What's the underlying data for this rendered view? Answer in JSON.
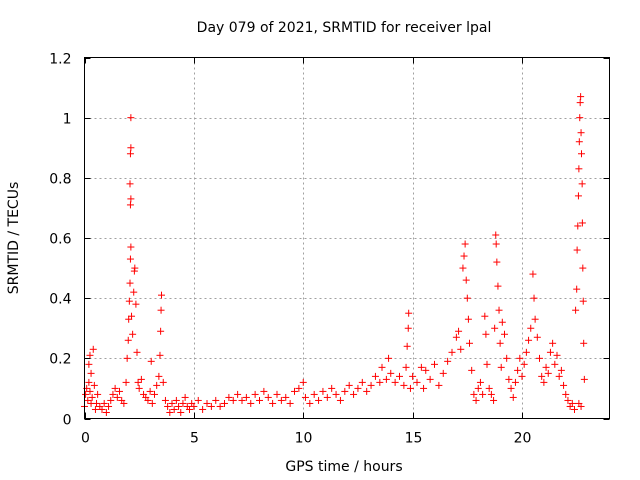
{
  "chart_data": {
    "type": "scatter",
    "title": "Day 079 of 2021, SRMTID for receiver lpal",
    "xlabel": "GPS time / hours",
    "ylabel": "SRMTID / TECUs",
    "xlim": [
      0,
      24
    ],
    "ylim": [
      0,
      1.2
    ],
    "xticks": [
      0,
      5,
      10,
      15,
      20
    ],
    "xtick_labels": [
      "0",
      "5",
      "10",
      "15",
      "20"
    ],
    "yticks": [
      0,
      0.2,
      0.4,
      0.6,
      0.8,
      1.0,
      1.2
    ],
    "ytick_labels": [
      "0",
      "0.2",
      "0.4",
      "0.6",
      "0.8",
      "1",
      "1.2"
    ],
    "grid": true,
    "marker": "+",
    "color": "#ff0000",
    "series": [
      {
        "name": "SRMTID",
        "points": [
          [
            0.0,
            0.04
          ],
          [
            0.05,
            0.08
          ],
          [
            0.1,
            0.1
          ],
          [
            0.15,
            0.06
          ],
          [
            0.2,
            0.12
          ],
          [
            0.25,
            0.09
          ],
          [
            0.3,
            0.05
          ],
          [
            0.35,
            0.07
          ],
          [
            0.2,
            0.18
          ],
          [
            0.25,
            0.21
          ],
          [
            0.3,
            0.15
          ],
          [
            0.4,
            0.23
          ],
          [
            0.45,
            0.11
          ],
          [
            0.5,
            0.03
          ],
          [
            0.55,
            0.05
          ],
          [
            0.6,
            0.08
          ],
          [
            0.7,
            0.04
          ],
          [
            0.8,
            0.03
          ],
          [
            0.9,
            0.05
          ],
          [
            1.0,
            0.02
          ],
          [
            1.1,
            0.04
          ],
          [
            1.2,
            0.06
          ],
          [
            1.3,
            0.08
          ],
          [
            1.4,
            0.1
          ],
          [
            1.5,
            0.07
          ],
          [
            1.6,
            0.09
          ],
          [
            1.7,
            0.06
          ],
          [
            1.8,
            0.05
          ],
          [
            1.9,
            0.12
          ],
          [
            1.95,
            0.2
          ],
          [
            2.0,
            0.26
          ],
          [
            2.02,
            0.33
          ],
          [
            2.05,
            0.39
          ],
          [
            2.08,
            0.45
          ],
          [
            2.1,
            0.53
          ],
          [
            2.12,
            0.57
          ],
          [
            2.1,
            0.71
          ],
          [
            2.12,
            0.73
          ],
          [
            2.08,
            0.78
          ],
          [
            2.1,
            0.88
          ],
          [
            2.12,
            0.9
          ],
          [
            2.12,
            1.0
          ],
          [
            2.15,
            0.34
          ],
          [
            2.2,
            0.28
          ],
          [
            2.25,
            0.42
          ],
          [
            2.28,
            0.49
          ],
          [
            2.3,
            0.5
          ],
          [
            2.35,
            0.38
          ],
          [
            2.4,
            0.22
          ],
          [
            2.45,
            0.12
          ],
          [
            2.5,
            0.1
          ],
          [
            2.6,
            0.13
          ],
          [
            2.7,
            0.08
          ],
          [
            2.8,
            0.07
          ],
          [
            2.9,
            0.06
          ],
          [
            3.0,
            0.09
          ],
          [
            3.05,
            0.19
          ],
          [
            3.1,
            0.05
          ],
          [
            3.2,
            0.08
          ],
          [
            3.3,
            0.11
          ],
          [
            3.4,
            0.14
          ],
          [
            3.45,
            0.21
          ],
          [
            3.48,
            0.29
          ],
          [
            3.5,
            0.36
          ],
          [
            3.52,
            0.41
          ],
          [
            3.6,
            0.12
          ],
          [
            3.7,
            0.06
          ],
          [
            3.8,
            0.04
          ],
          [
            3.9,
            0.02
          ],
          [
            4.0,
            0.05
          ],
          [
            4.1,
            0.03
          ],
          [
            4.2,
            0.06
          ],
          [
            4.3,
            0.04
          ],
          [
            4.4,
            0.02
          ],
          [
            4.5,
            0.05
          ],
          [
            4.6,
            0.07
          ],
          [
            4.7,
            0.04
          ],
          [
            4.8,
            0.03
          ],
          [
            4.9,
            0.05
          ],
          [
            5.0,
            0.04
          ],
          [
            5.2,
            0.06
          ],
          [
            5.4,
            0.03
          ],
          [
            5.6,
            0.05
          ],
          [
            5.8,
            0.04
          ],
          [
            6.0,
            0.06
          ],
          [
            6.2,
            0.04
          ],
          [
            6.4,
            0.05
          ],
          [
            6.6,
            0.07
          ],
          [
            6.8,
            0.06
          ],
          [
            7.0,
            0.08
          ],
          [
            7.2,
            0.06
          ],
          [
            7.4,
            0.07
          ],
          [
            7.6,
            0.05
          ],
          [
            7.8,
            0.08
          ],
          [
            8.0,
            0.06
          ],
          [
            8.2,
            0.09
          ],
          [
            8.4,
            0.07
          ],
          [
            8.6,
            0.05
          ],
          [
            8.8,
            0.08
          ],
          [
            9.0,
            0.06
          ],
          [
            9.2,
            0.07
          ],
          [
            9.4,
            0.05
          ],
          [
            9.6,
            0.09
          ],
          [
            9.8,
            0.1
          ],
          [
            10.0,
            0.12
          ],
          [
            10.1,
            0.07
          ],
          [
            10.3,
            0.05
          ],
          [
            10.5,
            0.08
          ],
          [
            10.7,
            0.06
          ],
          [
            10.9,
            0.09
          ],
          [
            11.1,
            0.07
          ],
          [
            11.3,
            0.1
          ],
          [
            11.5,
            0.08
          ],
          [
            11.7,
            0.06
          ],
          [
            11.9,
            0.09
          ],
          [
            12.1,
            0.11
          ],
          [
            12.3,
            0.08
          ],
          [
            12.5,
            0.1
          ],
          [
            12.7,
            0.12
          ],
          [
            12.9,
            0.09
          ],
          [
            13.1,
            0.11
          ],
          [
            13.3,
            0.14
          ],
          [
            13.5,
            0.12
          ],
          [
            13.6,
            0.17
          ],
          [
            13.8,
            0.13
          ],
          [
            13.9,
            0.2
          ],
          [
            14.0,
            0.15
          ],
          [
            14.2,
            0.12
          ],
          [
            14.4,
            0.14
          ],
          [
            14.6,
            0.11
          ],
          [
            14.7,
            0.17
          ],
          [
            14.75,
            0.24
          ],
          [
            14.8,
            0.3
          ],
          [
            14.82,
            0.35
          ],
          [
            14.9,
            0.1
          ],
          [
            15.0,
            0.14
          ],
          [
            15.2,
            0.12
          ],
          [
            15.4,
            0.17
          ],
          [
            15.5,
            0.1
          ],
          [
            15.6,
            0.16
          ],
          [
            15.8,
            0.13
          ],
          [
            16.0,
            0.18
          ],
          [
            16.2,
            0.11
          ],
          [
            16.4,
            0.15
          ],
          [
            16.6,
            0.19
          ],
          [
            16.8,
            0.22
          ],
          [
            17.0,
            0.27
          ],
          [
            17.1,
            0.29
          ],
          [
            17.2,
            0.23
          ],
          [
            17.3,
            0.5
          ],
          [
            17.35,
            0.54
          ],
          [
            17.4,
            0.58
          ],
          [
            17.45,
            0.46
          ],
          [
            17.5,
            0.4
          ],
          [
            17.55,
            0.33
          ],
          [
            17.6,
            0.25
          ],
          [
            17.7,
            0.16
          ],
          [
            17.8,
            0.08
          ],
          [
            17.9,
            0.06
          ],
          [
            18.0,
            0.1
          ],
          [
            18.1,
            0.12
          ],
          [
            18.2,
            0.08
          ],
          [
            18.3,
            0.34
          ],
          [
            18.35,
            0.28
          ],
          [
            18.4,
            0.18
          ],
          [
            18.5,
            0.1
          ],
          [
            18.6,
            0.08
          ],
          [
            18.7,
            0.06
          ],
          [
            18.75,
            0.3
          ],
          [
            18.8,
            0.61
          ],
          [
            18.82,
            0.58
          ],
          [
            18.85,
            0.52
          ],
          [
            18.9,
            0.44
          ],
          [
            18.95,
            0.36
          ],
          [
            19.0,
            0.25
          ],
          [
            19.05,
            0.17
          ],
          [
            19.1,
            0.32
          ],
          [
            19.2,
            0.28
          ],
          [
            19.3,
            0.2
          ],
          [
            19.4,
            0.13
          ],
          [
            19.5,
            0.1
          ],
          [
            19.6,
            0.07
          ],
          [
            19.7,
            0.12
          ],
          [
            19.8,
            0.16
          ],
          [
            19.9,
            0.2
          ],
          [
            20.0,
            0.14
          ],
          [
            20.1,
            0.18
          ],
          [
            20.2,
            0.22
          ],
          [
            20.3,
            0.26
          ],
          [
            20.4,
            0.3
          ],
          [
            20.5,
            0.48
          ],
          [
            20.55,
            0.4
          ],
          [
            20.6,
            0.33
          ],
          [
            20.7,
            0.27
          ],
          [
            20.8,
            0.2
          ],
          [
            20.9,
            0.14
          ],
          [
            21.0,
            0.12
          ],
          [
            21.1,
            0.17
          ],
          [
            21.2,
            0.15
          ],
          [
            21.3,
            0.22
          ],
          [
            21.4,
            0.25
          ],
          [
            21.5,
            0.18
          ],
          [
            21.6,
            0.21
          ],
          [
            21.7,
            0.14
          ],
          [
            21.8,
            0.16
          ],
          [
            21.9,
            0.11
          ],
          [
            22.0,
            0.08
          ],
          [
            22.1,
            0.06
          ],
          [
            22.2,
            0.04
          ],
          [
            22.3,
            0.05
          ],
          [
            22.4,
            0.03
          ],
          [
            22.45,
            0.36
          ],
          [
            22.5,
            0.43
          ],
          [
            22.52,
            0.56
          ],
          [
            22.55,
            0.64
          ],
          [
            22.58,
            0.74
          ],
          [
            22.6,
            0.83
          ],
          [
            22.62,
            0.92
          ],
          [
            22.64,
            1.0
          ],
          [
            22.66,
            1.05
          ],
          [
            22.68,
            1.07
          ],
          [
            22.7,
            0.95
          ],
          [
            22.72,
            0.88
          ],
          [
            22.75,
            0.78
          ],
          [
            22.76,
            0.65
          ],
          [
            22.78,
            0.5
          ],
          [
            22.8,
            0.39
          ],
          [
            22.82,
            0.25
          ],
          [
            22.85,
            0.13
          ],
          [
            22.7,
            0.04
          ],
          [
            22.6,
            0.05
          ]
        ]
      }
    ]
  }
}
